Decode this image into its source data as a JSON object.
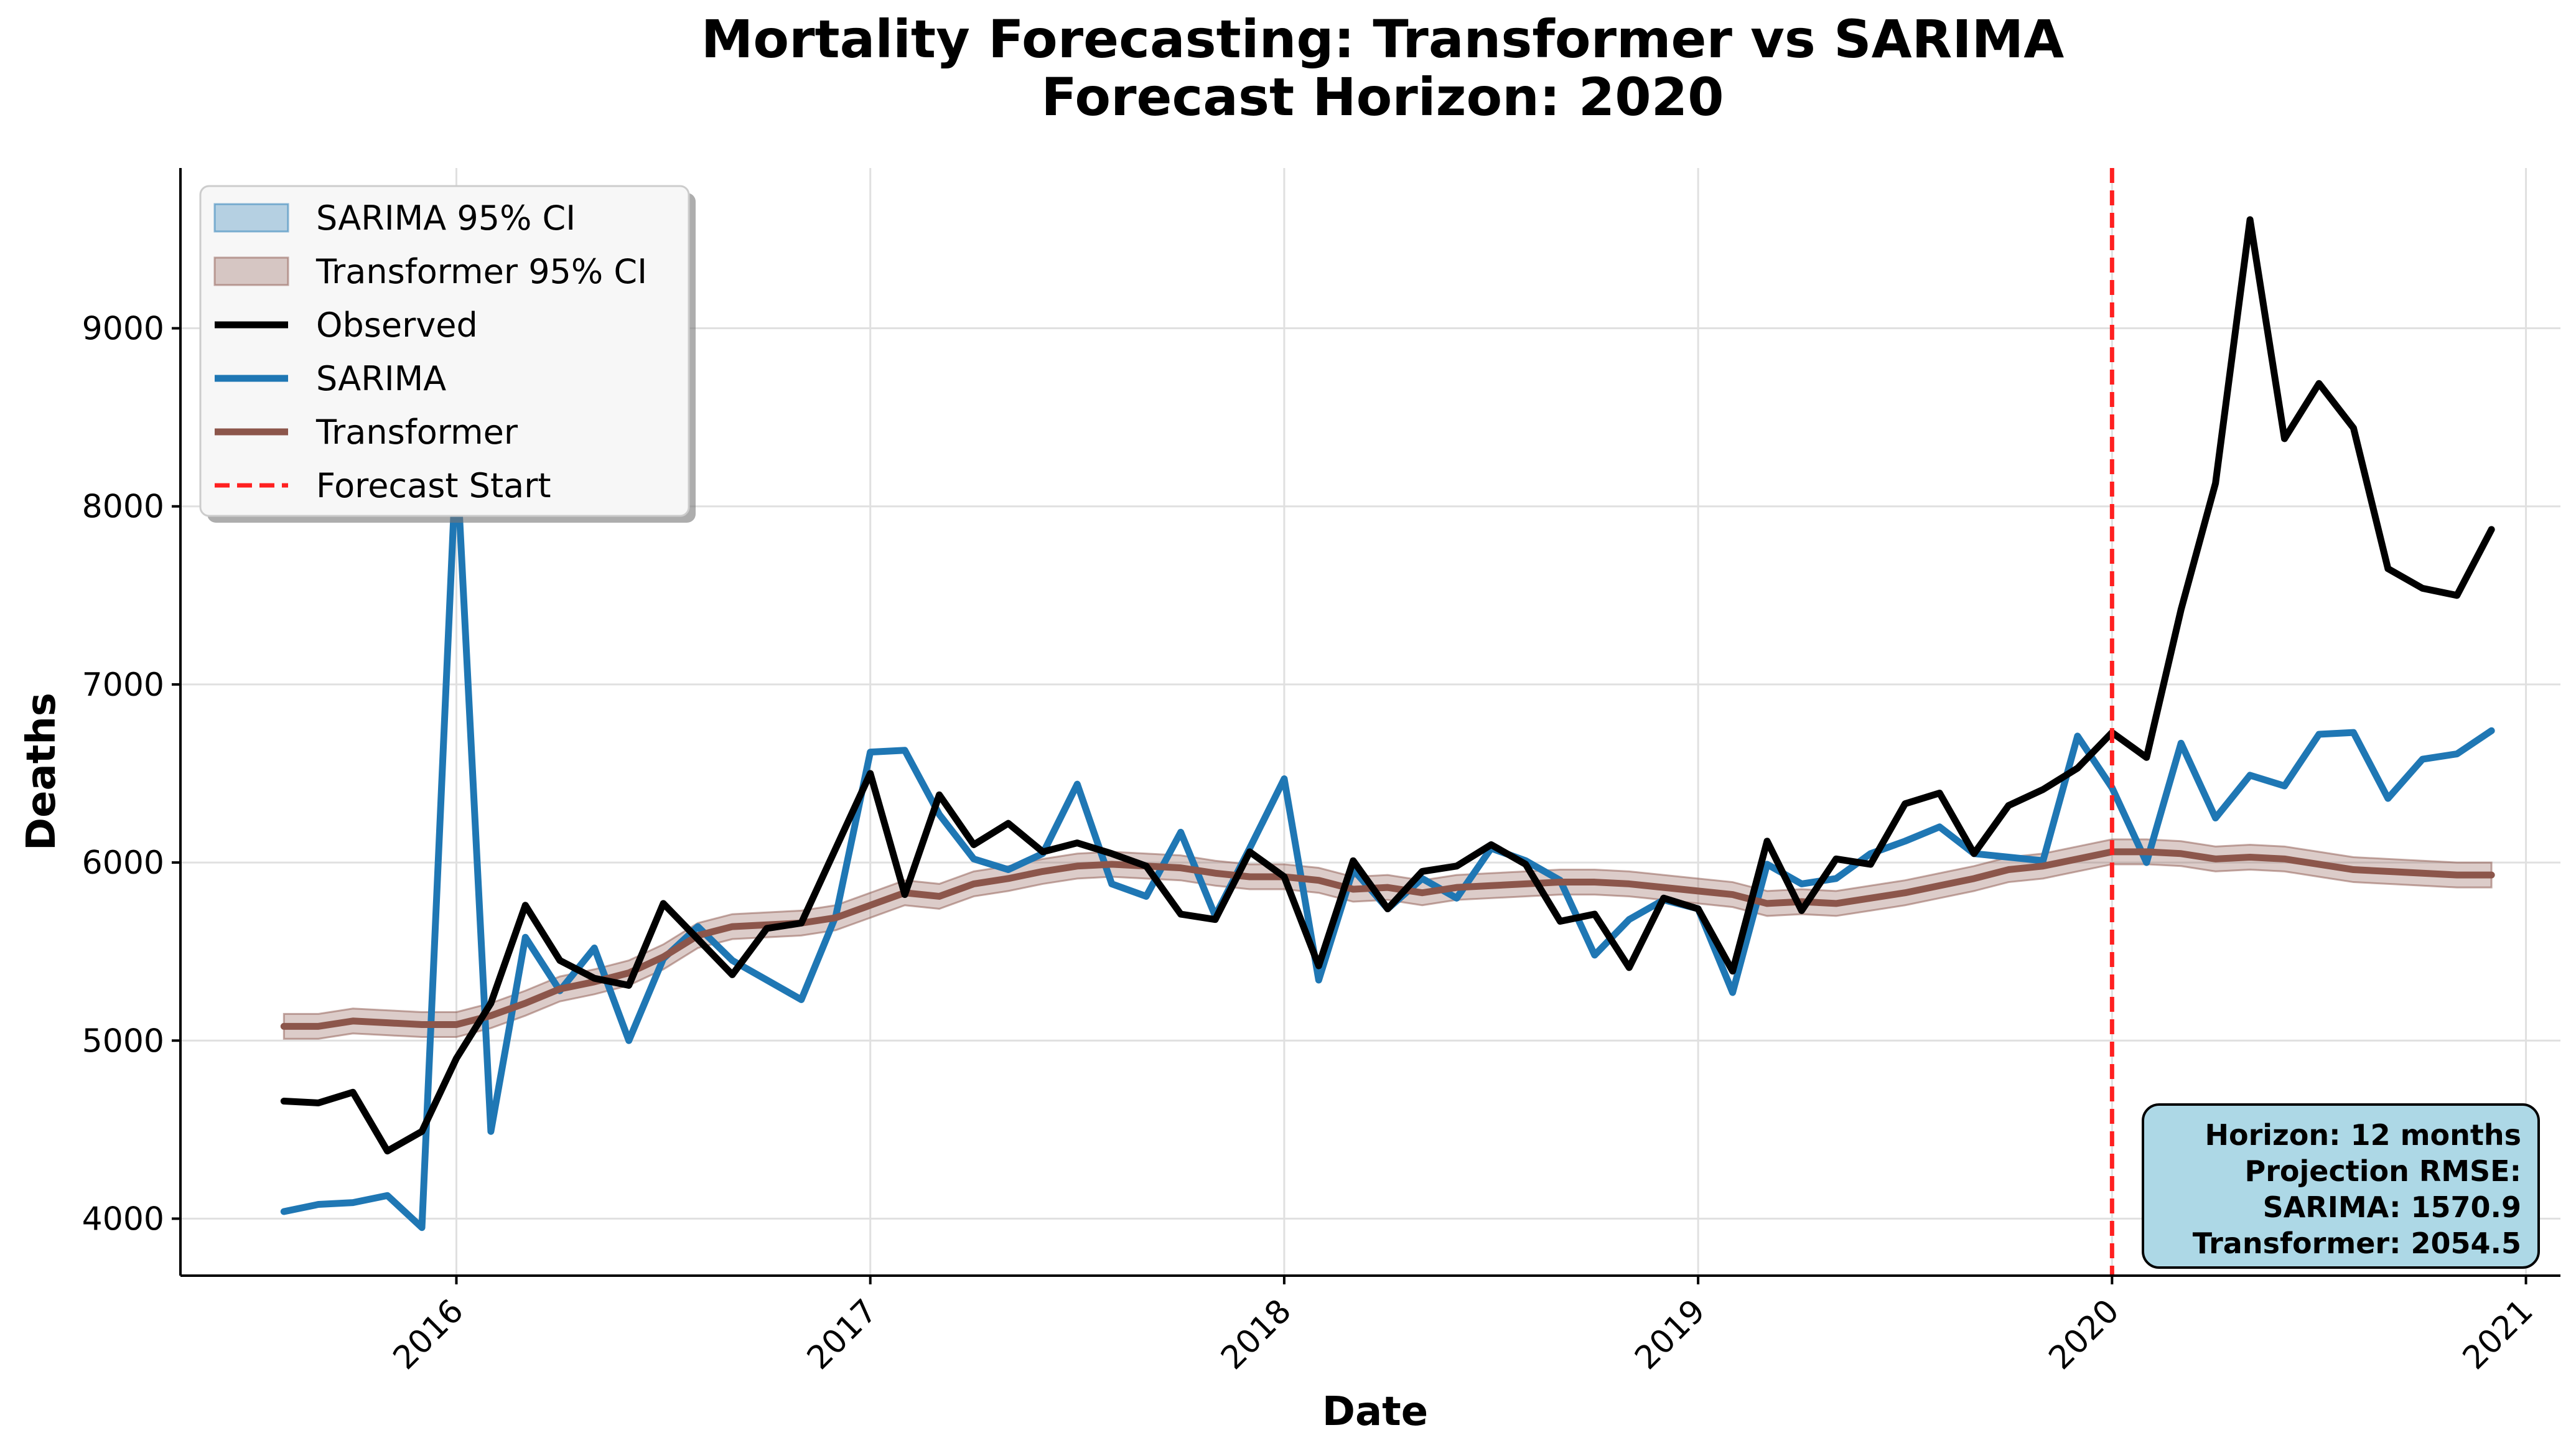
{
  "chart_data": {
    "type": "line",
    "title": "Mortality Forecasting: Transformer vs SARIMA",
    "subtitle": "Forecast Horizon: 2020",
    "xlabel": "Date",
    "ylabel": "Deaths",
    "xlim": [
      "2015-05",
      "2021-02"
    ],
    "ylim": [
      3680,
      9900
    ],
    "x_ticks": [
      "2016",
      "2017",
      "2018",
      "2019",
      "2020",
      "2021"
    ],
    "y_ticks": [
      4000,
      5000,
      6000,
      7000,
      8000,
      9000
    ],
    "grid": true,
    "legend_position": "top-left",
    "x": [
      "2015-08",
      "2015-09",
      "2015-10",
      "2015-11",
      "2015-12",
      "2016-01",
      "2016-02",
      "2016-03",
      "2016-04",
      "2016-05",
      "2016-06",
      "2016-07",
      "2016-08",
      "2016-09",
      "2016-10",
      "2016-11",
      "2016-12",
      "2017-01",
      "2017-02",
      "2017-03",
      "2017-04",
      "2017-05",
      "2017-06",
      "2017-07",
      "2017-08",
      "2017-09",
      "2017-10",
      "2017-11",
      "2017-12",
      "2018-01",
      "2018-02",
      "2018-03",
      "2018-04",
      "2018-05",
      "2018-06",
      "2018-07",
      "2018-08",
      "2018-09",
      "2018-10",
      "2018-11",
      "2018-12",
      "2019-01",
      "2019-02",
      "2019-03",
      "2019-04",
      "2019-05",
      "2019-06",
      "2019-07",
      "2019-08",
      "2019-09",
      "2019-10",
      "2019-11",
      "2019-12",
      "2020-01",
      "2020-02",
      "2020-03",
      "2020-04",
      "2020-05",
      "2020-06",
      "2020-07",
      "2020-08",
      "2020-09",
      "2020-10",
      "2020-11",
      "2020-12"
    ],
    "series": [
      {
        "name": "Observed",
        "color": "#000000",
        "values": [
          4660,
          4650,
          4710,
          4380,
          4490,
          4900,
          5210,
          5760,
          5450,
          5350,
          5310,
          5770,
          5570,
          5370,
          5630,
          5660,
          6080,
          6500,
          5820,
          6380,
          6100,
          6220,
          6060,
          6110,
          6050,
          5980,
          5710,
          5680,
          6060,
          5920,
          5420,
          6010,
          5740,
          5950,
          5980,
          6100,
          5990,
          5670,
          5710,
          5410,
          5800,
          5740,
          5390,
          6120,
          5730,
          6020,
          5990,
          6330,
          6390,
          6050,
          6320,
          6410,
          6530,
          6730,
          6590,
          7420,
          8130,
          9610,
          8380,
          8690,
          8440,
          7650,
          7540,
          7500,
          7870
        ]
      },
      {
        "name": "SARIMA",
        "color": "#1f77b4",
        "values": [
          4040,
          4080,
          4090,
          4130,
          3950,
          8290,
          4490,
          5580,
          5280,
          5520,
          5000,
          5460,
          5640,
          5450,
          5340,
          5230,
          5700,
          6620,
          6630,
          6270,
          6020,
          5960,
          6050,
          6440,
          5880,
          5810,
          6170,
          5700,
          6080,
          6470,
          5340,
          5960,
          5740,
          5910,
          5800,
          6080,
          6010,
          5900,
          5480,
          5680,
          5790,
          5740,
          5270,
          5990,
          5880,
          5910,
          6050,
          6120,
          6200,
          6050,
          6030,
          6010,
          6710,
          6420,
          6000,
          6670,
          6250,
          6490,
          6430,
          6720,
          6730,
          6360,
          6580,
          6610,
          6740
        ]
      },
      {
        "name": "Transformer",
        "color": "#8c564b",
        "values": [
          5080,
          5080,
          5110,
          5100,
          5090,
          5090,
          5140,
          5210,
          5290,
          5330,
          5380,
          5470,
          5590,
          5640,
          5650,
          5660,
          5690,
          5760,
          5830,
          5810,
          5880,
          5910,
          5950,
          5980,
          5990,
          5980,
          5970,
          5940,
          5920,
          5920,
          5900,
          5850,
          5860,
          5830,
          5860,
          5870,
          5880,
          5890,
          5890,
          5880,
          5860,
          5840,
          5820,
          5770,
          5780,
          5770,
          5800,
          5830,
          5870,
          5910,
          5960,
          5980,
          6020,
          6060,
          6060,
          6050,
          6020,
          6030,
          6020,
          5990,
          5960,
          5950,
          5940,
          5930,
          5930
        ]
      }
    ],
    "confidence_intervals": [
      {
        "name": "SARIMA 95% CI",
        "color": "#1f77b4",
        "opacity": 0.3
      },
      {
        "name": "Transformer 95% CI",
        "color": "#8c564b",
        "opacity": 0.3,
        "half_width": 70
      }
    ],
    "forecast_start": {
      "name": "Forecast Start",
      "x": "2020-01",
      "color": "#ff2020"
    },
    "annotation": {
      "lines": [
        "Horizon: 12 months",
        "Projection RMSE:",
        "SARIMA: 1570.9",
        "Transformer: 2054.5"
      ],
      "background": "#add8e6"
    }
  }
}
